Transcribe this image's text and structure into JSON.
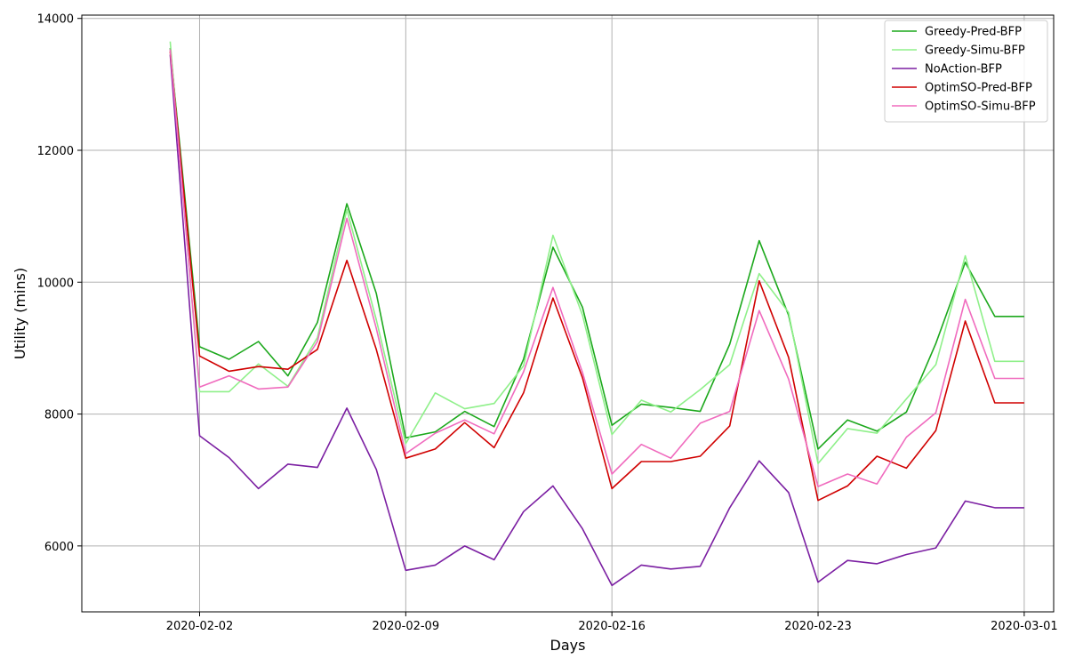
{
  "chart_data": {
    "type": "line",
    "xlabel": "Days",
    "ylabel": "Utility (mins)",
    "x_tick_labels": [
      "2020-02-02",
      "2020-02-09",
      "2020-02-16",
      "2020-02-23",
      "2020-03-01"
    ],
    "y_tick_labels": [
      "6000",
      "8000",
      "10000",
      "12000",
      "14000"
    ],
    "y_ticks": [
      6000,
      8000,
      10000,
      12000,
      14000
    ],
    "ylim": [
      5000,
      14050
    ],
    "xlim": [
      "2020-01-29",
      "2020-03-02"
    ],
    "grid": true,
    "legend_position": "top-right",
    "x": [
      "2020-02-01",
      "2020-02-02",
      "2020-02-03",
      "2020-02-04",
      "2020-02-05",
      "2020-02-06",
      "2020-02-07",
      "2020-02-08",
      "2020-02-09",
      "2020-02-10",
      "2020-02-11",
      "2020-02-12",
      "2020-02-13",
      "2020-02-14",
      "2020-02-15",
      "2020-02-16",
      "2020-02-17",
      "2020-02-18",
      "2020-02-19",
      "2020-02-20",
      "2020-02-21",
      "2020-02-22",
      "2020-02-23",
      "2020-02-24",
      "2020-02-25",
      "2020-02-26",
      "2020-02-27",
      "2020-02-28",
      "2020-02-29",
      "2020-03-01"
    ],
    "series": [
      {
        "name": "Greedy-Pred-BFP",
        "color": "#1ca81c",
        "values": [
          13550,
          9020,
          8830,
          9100,
          8580,
          9390,
          11190,
          9830,
          7640,
          7730,
          8040,
          7810,
          8830,
          10530,
          9620,
          7830,
          8150,
          8100,
          8040,
          9060,
          10630,
          9500,
          7470,
          7910,
          7740,
          8030,
          9070,
          10300,
          9480,
          9480
        ]
      },
      {
        "name": "Greedy-Simu-BFP",
        "color": "#8ff08a",
        "values": [
          13650,
          8340,
          8340,
          8760,
          8420,
          9160,
          11100,
          9430,
          7550,
          8320,
          8080,
          8160,
          8730,
          10710,
          9500,
          7690,
          8210,
          8030,
          8370,
          8750,
          10130,
          9540,
          7250,
          7780,
          7710,
          8230,
          8750,
          10400,
          8800,
          8800
        ]
      },
      {
        "name": "NoAction-BFP",
        "color": "#7b1fa2",
        "values": [
          13450,
          7670,
          7340,
          6870,
          7240,
          7190,
          8090,
          7160,
          5630,
          5710,
          6000,
          5790,
          6520,
          6910,
          6260,
          5400,
          5710,
          5650,
          5690,
          6580,
          7290,
          6810,
          5450,
          5780,
          5730,
          5870,
          5970,
          6680,
          6580,
          6580
        ]
      },
      {
        "name": "OptimSO-Pred-BFP",
        "color": "#d00000",
        "values": [
          13500,
          8880,
          8650,
          8720,
          8680,
          8980,
          10330,
          8980,
          7330,
          7470,
          7870,
          7490,
          8320,
          9760,
          8550,
          6870,
          7280,
          7280,
          7360,
          7820,
          10020,
          8860,
          6690,
          6910,
          7360,
          7180,
          7750,
          9410,
          8170,
          8170
        ]
      },
      {
        "name": "OptimSO-Simu-BFP",
        "color": "#f06bbe",
        "values": [
          13530,
          8410,
          8580,
          8380,
          8410,
          9100,
          10970,
          9300,
          7400,
          7710,
          7910,
          7700,
          8640,
          9920,
          8630,
          7090,
          7540,
          7330,
          7860,
          8040,
          9570,
          8530,
          6900,
          7090,
          6940,
          7650,
          8020,
          9740,
          8540,
          8540
        ]
      }
    ]
  }
}
